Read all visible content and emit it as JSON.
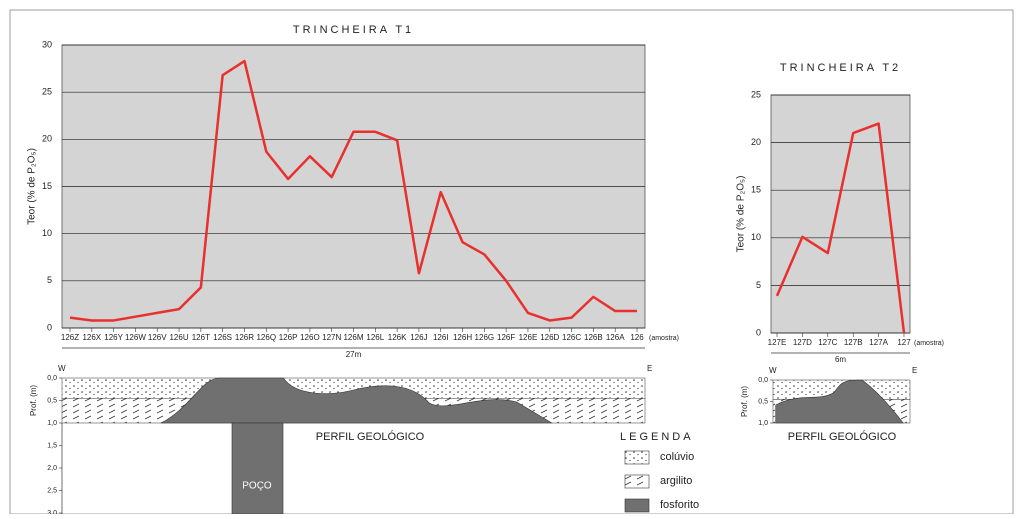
{
  "chart_data": [
    {
      "type": "line",
      "title": "TRINCHEIRA T1",
      "y_label": "Teor (% de P₂O₅)",
      "x_note": "(amostra)",
      "distance_label": "27m",
      "categories": [
        "126Z",
        "126X",
        "126Y",
        "126W",
        "126V",
        "126U",
        "126T",
        "126S",
        "126R",
        "126Q",
        "126P",
        "126O",
        "127N",
        "126M",
        "126L",
        "126K",
        "126J",
        "126I",
        "126H",
        "126G",
        "126F",
        "126E",
        "126D",
        "126C",
        "126B",
        "126A",
        "126"
      ],
      "values": [
        1.1,
        0.8,
        0.8,
        1.2,
        1.6,
        2,
        4.3,
        26.8,
        28.3,
        18.7,
        15.8,
        18.2,
        16,
        20.8,
        20.8,
        19.9,
        5.8,
        14.4,
        9.1,
        7.8,
        5,
        1.6,
        0.8,
        1.1,
        3.3,
        1.8,
        1.8
      ],
      "color": "#e8302e",
      "ylim": [
        0,
        30
      ],
      "yticks": [
        0,
        5,
        10,
        15,
        20,
        25,
        30
      ],
      "grid": true
    },
    {
      "type": "line",
      "title": "TRINCHEIRA T2",
      "y_label": "Teor (% de P₂O₅)",
      "x_note": "(amostra)",
      "distance_label": "6m",
      "categories": [
        "127E",
        "127D",
        "127C",
        "127B",
        "127A",
        "127"
      ],
      "values": [
        3.9,
        10.1,
        8.4,
        21,
        22,
        0
      ],
      "color": "#e8302e",
      "ylim": [
        0,
        25
      ],
      "yticks": [
        0,
        5,
        10,
        15,
        20,
        25
      ],
      "grid": true
    }
  ],
  "profiles": [
    {
      "title": "PERFIL GEOLÓGICO",
      "depth_label": "Prof. (m)",
      "depth_ticks": [
        "0,0",
        "0,5",
        "1,0",
        "1,5",
        "2,0",
        "2,5",
        "3,0"
      ],
      "west": "W",
      "east": "E",
      "well": "POÇO"
    },
    {
      "title": "PERFIL GEOLÓGICO",
      "depth_label": "Prof. (m)",
      "depth_ticks": [
        "0,0",
        "0,5",
        "1,0"
      ],
      "west": "W",
      "east": "E"
    }
  ],
  "legend": {
    "title": "LEGENDA",
    "items": [
      "colúvio",
      "argilito",
      "fosforito"
    ]
  }
}
